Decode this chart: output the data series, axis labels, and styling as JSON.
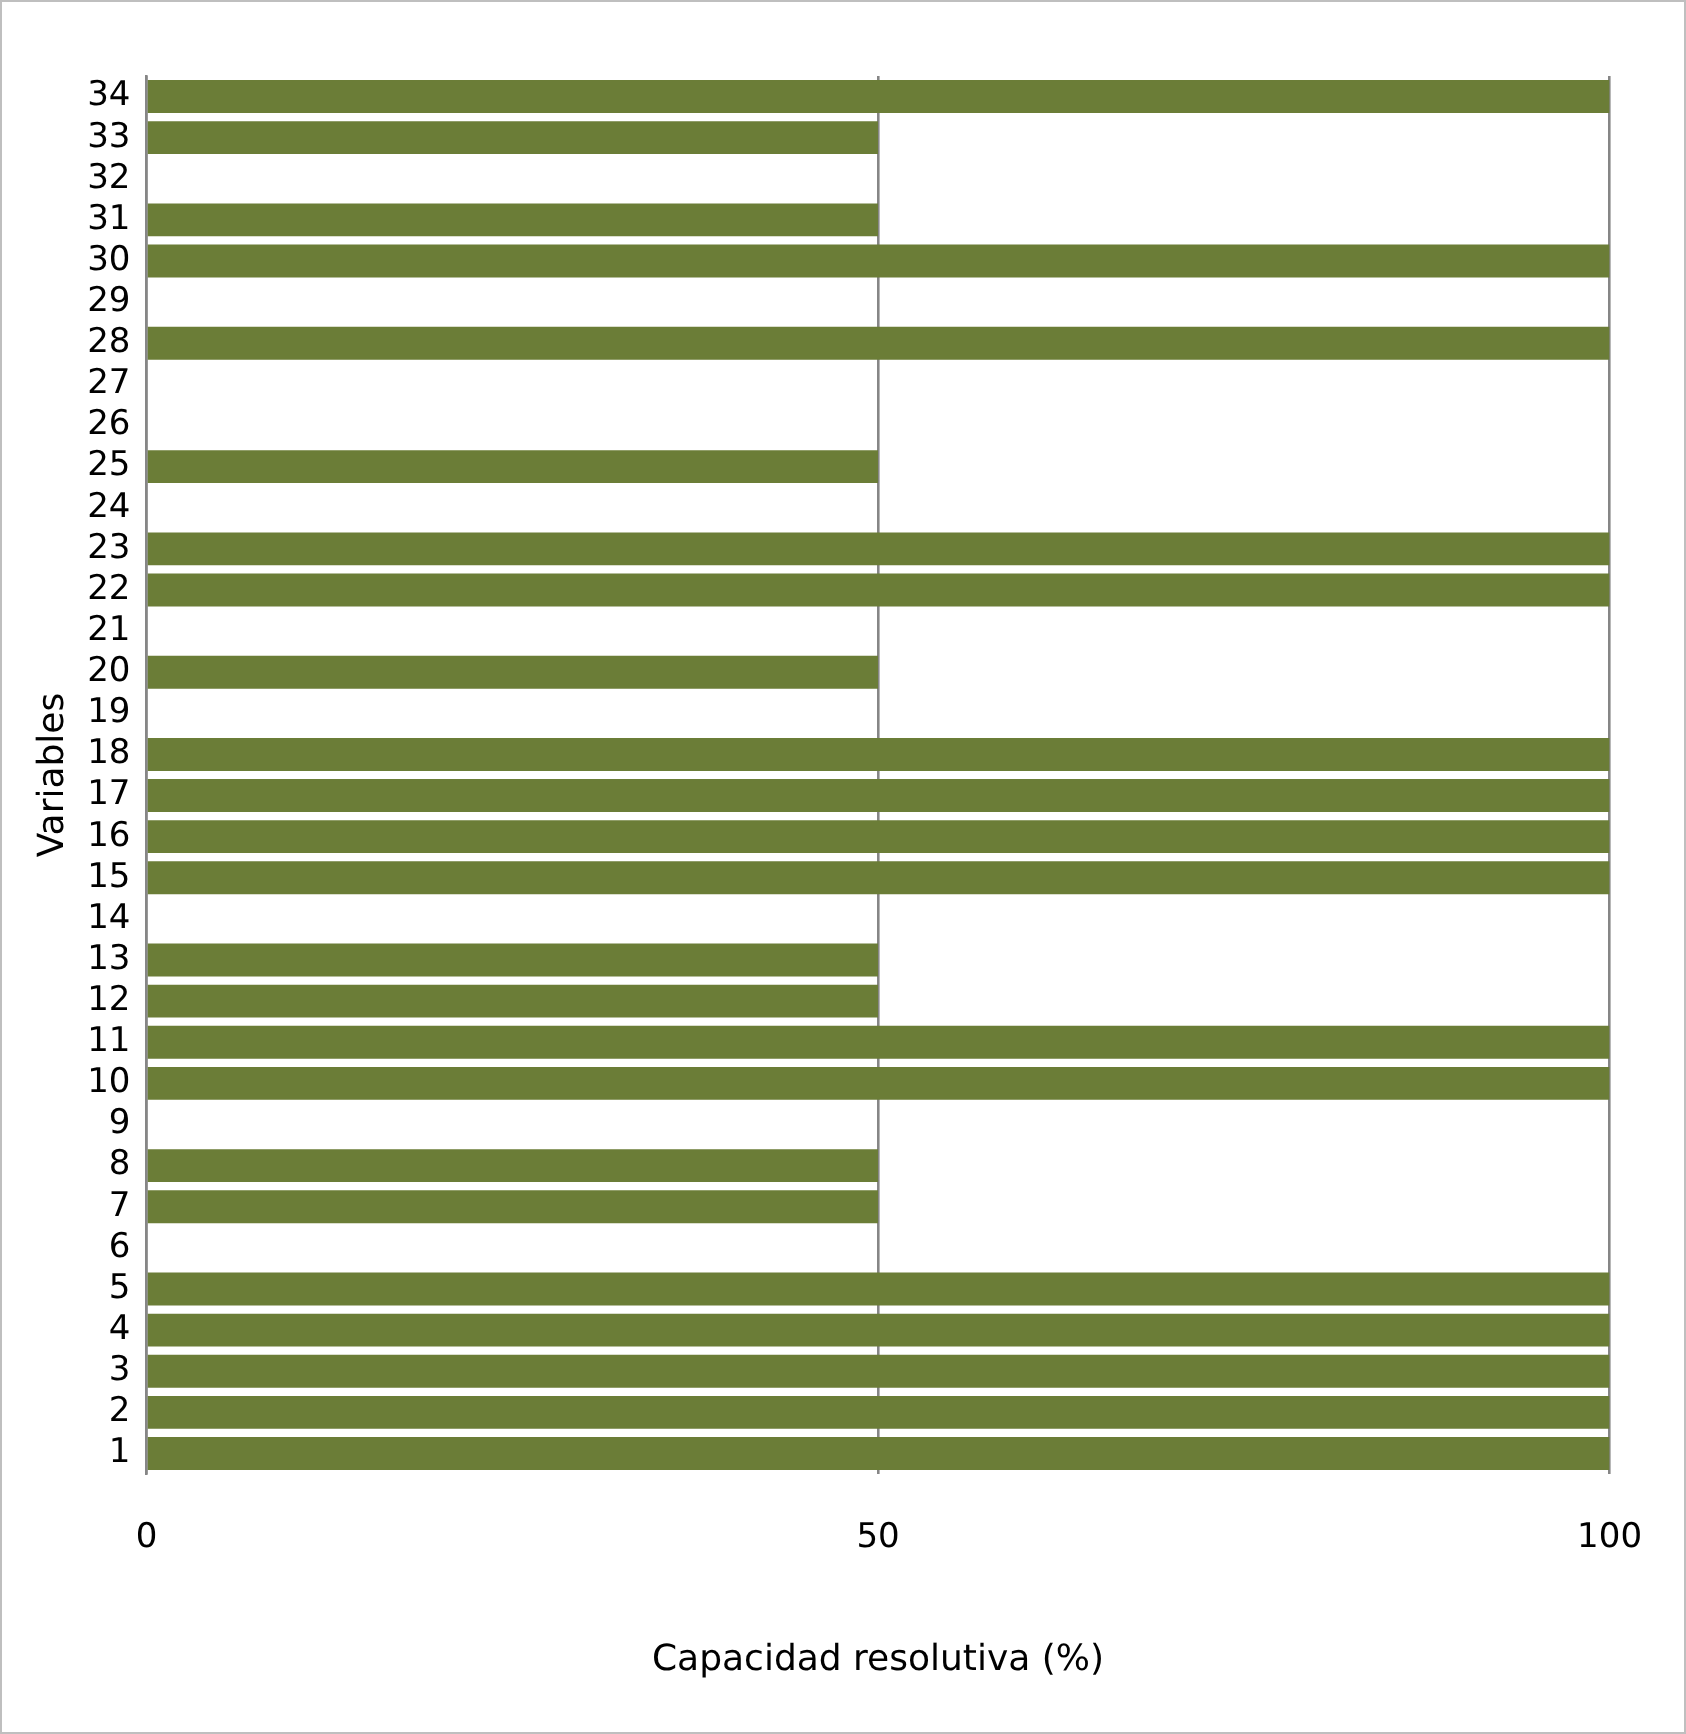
{
  "chart_data": {
    "type": "bar",
    "orientation": "horizontal",
    "xlabel": "Capacidad resolutiva (%)",
    "ylabel": "Variables",
    "categories": [
      "34",
      "33",
      "32",
      "31",
      "30",
      "29",
      "28",
      "27",
      "26",
      "25",
      "24",
      "23",
      "22",
      "21",
      "20",
      "19",
      "18",
      "17",
      "16",
      "15",
      "14",
      "13",
      "12",
      "11",
      "10",
      "9",
      "8",
      "7",
      "6",
      "5",
      "4",
      "3",
      "2",
      "1"
    ],
    "values": [
      100,
      50,
      0,
      50,
      100,
      0,
      100,
      0,
      0,
      50,
      0,
      100,
      100,
      0,
      50,
      0,
      100,
      100,
      100,
      100,
      0,
      50,
      50,
      100,
      100,
      0,
      50,
      50,
      0,
      100,
      100,
      100,
      100,
      100
    ],
    "color": "#6b7d37",
    "xlim": [
      0,
      100
    ],
    "xticks": [
      0,
      50,
      100
    ],
    "grid": "x"
  }
}
